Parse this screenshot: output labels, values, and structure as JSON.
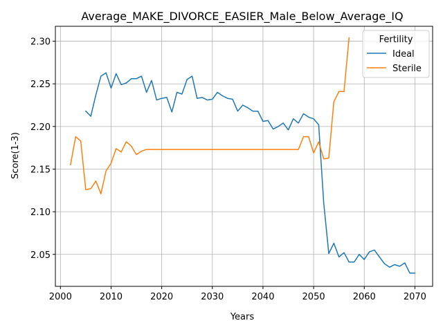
{
  "chart_data": {
    "type": "line",
    "title": "Average_MAKE_DIVORCE_EASIER_Male_Below_Average_IQ",
    "xlabel": "Years",
    "ylabel": "Score(1-3)",
    "xlim": [
      1999,
      2073.5
    ],
    "ylim": [
      2.0125,
      2.3175
    ],
    "xticks": [
      2000,
      2010,
      2020,
      2030,
      2040,
      2050,
      2060,
      2070
    ],
    "yticks": [
      2.05,
      2.1,
      2.15,
      2.2,
      2.25,
      2.3
    ],
    "ytick_labels": [
      "2.05",
      "2.10",
      "2.15",
      "2.20",
      "2.25",
      "2.30"
    ],
    "grid": true,
    "legend": {
      "title": "Fertility",
      "position": "top-right"
    },
    "series": [
      {
        "name": "Ideal",
        "color": "#1f77b4",
        "x": [
          2005,
          2006,
          2007,
          2008,
          2009,
          2010,
          2011,
          2012,
          2013,
          2014,
          2015,
          2016,
          2017,
          2018,
          2019,
          2020,
          2021,
          2022,
          2023,
          2024,
          2025,
          2026,
          2027,
          2028,
          2029,
          2030,
          2031,
          2032,
          2033,
          2034,
          2035,
          2036,
          2037,
          2038,
          2039,
          2040,
          2041,
          2042,
          2043,
          2044,
          2045,
          2046,
          2047,
          2048,
          2049,
          2050,
          2051,
          2052,
          2053,
          2054,
          2055,
          2056,
          2057,
          2058,
          2059,
          2060,
          2061,
          2062,
          2063,
          2064,
          2065,
          2066,
          2067,
          2068,
          2069,
          2070
        ],
        "y": [
          2.218,
          2.212,
          2.237,
          2.259,
          2.263,
          2.245,
          2.262,
          2.249,
          2.251,
          2.256,
          2.256,
          2.259,
          2.24,
          2.254,
          2.231,
          2.233,
          2.234,
          2.217,
          2.24,
          2.238,
          2.255,
          2.259,
          2.233,
          2.234,
          2.231,
          2.232,
          2.24,
          2.236,
          2.233,
          2.232,
          2.218,
          2.225,
          2.222,
          2.218,
          2.218,
          2.206,
          2.207,
          2.197,
          2.2,
          2.204,
          2.196,
          2.209,
          2.204,
          2.215,
          2.211,
          2.209,
          2.202,
          2.11,
          2.051,
          2.063,
          2.047,
          2.052,
          2.041,
          2.041,
          2.05,
          2.044,
          2.053,
          2.055,
          2.047,
          2.039,
          2.035,
          2.038,
          2.036,
          2.04,
          2.028,
          2.028
        ]
      },
      {
        "name": "Sterile",
        "color": "#ff7f0e",
        "x": [
          2002,
          2003,
          2004,
          2005,
          2006,
          2007,
          2008,
          2009,
          2010,
          2011,
          2012,
          2013,
          2014,
          2015,
          2016,
          2017,
          2018,
          2019,
          2020,
          2021,
          2022,
          2023,
          2024,
          2025,
          2026,
          2027,
          2028,
          2029,
          2030,
          2031,
          2032,
          2033,
          2034,
          2035,
          2036,
          2037,
          2038,
          2039,
          2040,
          2041,
          2042,
          2043,
          2044,
          2045,
          2046,
          2047,
          2048,
          2049,
          2050,
          2051,
          2052,
          2053,
          2054,
          2055,
          2056,
          2057
        ],
        "y": [
          2.155,
          2.188,
          2.183,
          2.126,
          2.127,
          2.136,
          2.121,
          2.148,
          2.157,
          2.174,
          2.17,
          2.182,
          2.177,
          2.167,
          2.171,
          2.173,
          2.173,
          2.173,
          2.173,
          2.173,
          2.173,
          2.173,
          2.173,
          2.173,
          2.173,
          2.173,
          2.173,
          2.173,
          2.173,
          2.173,
          2.173,
          2.173,
          2.173,
          2.173,
          2.173,
          2.173,
          2.173,
          2.173,
          2.173,
          2.173,
          2.173,
          2.173,
          2.173,
          2.173,
          2.173,
          2.173,
          2.188,
          2.188,
          2.169,
          2.182,
          2.162,
          2.163,
          2.229,
          2.241,
          2.241,
          2.304
        ]
      }
    ]
  }
}
